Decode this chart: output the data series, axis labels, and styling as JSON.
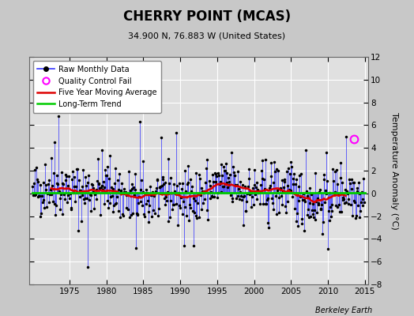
{
  "title": "CHERRY POINT (MCAS)",
  "subtitle": "34.900 N, 76.883 W (United States)",
  "ylabel": "Temperature Anomaly (°C)",
  "watermark": "Berkeley Earth",
  "ylim": [
    -8,
    12
  ],
  "yticks": [
    -8,
    -6,
    -4,
    -2,
    0,
    2,
    4,
    6,
    8,
    10,
    12
  ],
  "xlim": [
    1969.5,
    2015.5
  ],
  "xticks": [
    1975,
    1980,
    1985,
    1990,
    1995,
    2000,
    2005,
    2010,
    2015
  ],
  "bg_color": "#c8c8c8",
  "plot_bg_color": "#e0e0e0",
  "grid_color": "#ffffff",
  "line_color": "#3333ff",
  "dot_color": "#000000",
  "ma_color": "#dd0000",
  "trend_color": "#00cc00",
  "qc_color": "#ff00ff",
  "start_year": 1970,
  "end_year": 2014,
  "seed": 42,
  "qc_year": 2013.5,
  "qc_value": 4.8
}
